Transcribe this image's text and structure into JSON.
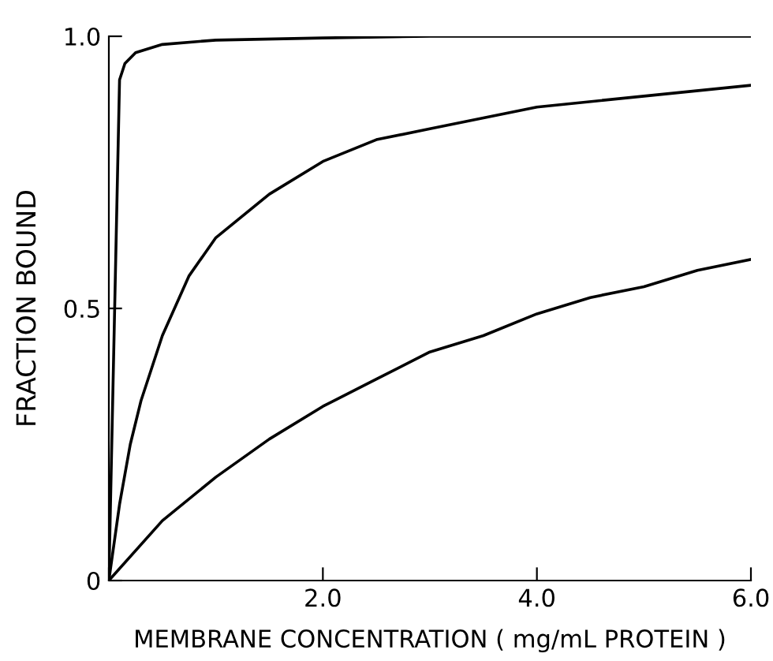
{
  "chart_data": {
    "type": "line",
    "xlabel": "MEMBRANE CONCENTRATION ( mg/mL PROTEIN )",
    "ylabel": "FRACTION BOUND",
    "xlim": [
      0,
      6.0
    ],
    "ylim": [
      0,
      1.0
    ],
    "xticks": [
      {
        "value": 0,
        "label": null
      },
      {
        "value": 2,
        "label": "2.0"
      },
      {
        "value": 4,
        "label": "4.0"
      },
      {
        "value": 6,
        "label": "6.0"
      }
    ],
    "yticks": [
      {
        "value": 0,
        "label": "0"
      },
      {
        "value": 0.5,
        "label": "0.5"
      },
      {
        "value": 1,
        "label": "1.0"
      }
    ],
    "grid": false,
    "legend": false,
    "marker": "none",
    "line_style": "solid",
    "series": [
      {
        "color": "#000000",
        "x": [
          0,
          0.1,
          0.15,
          0.25,
          0.5,
          1,
          2,
          3,
          6
        ],
        "values": [
          0,
          0.92,
          0.95,
          0.97,
          0.985,
          0.993,
          0.997,
          1.0,
          1.0
        ]
      },
      {
        "color": "#000000",
        "x": [
          0,
          0.1,
          0.2,
          0.3,
          0.5,
          0.75,
          1,
          1.5,
          2,
          2.5,
          3,
          4,
          5,
          6
        ],
        "values": [
          0,
          0.14,
          0.25,
          0.33,
          0.45,
          0.56,
          0.63,
          0.71,
          0.77,
          0.81,
          0.83,
          0.87,
          0.89,
          0.91
        ]
      },
      {
        "color": "#000000",
        "x": [
          0,
          0.5,
          1,
          1.5,
          2,
          2.5,
          3,
          3.5,
          4,
          4.5,
          5,
          5.5,
          6
        ],
        "values": [
          0,
          0.11,
          0.19,
          0.26,
          0.32,
          0.37,
          0.42,
          0.45,
          0.49,
          0.52,
          0.54,
          0.57,
          0.59
        ]
      }
    ]
  }
}
